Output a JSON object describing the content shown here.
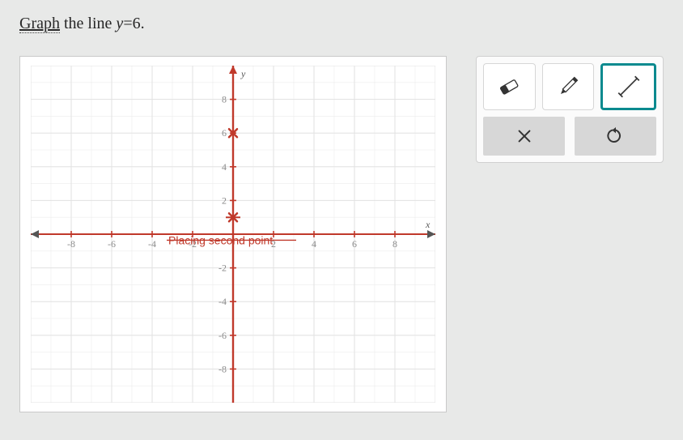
{
  "question": {
    "link_text": "Graph",
    "rest_text": " the line ",
    "equation_lhs": "y",
    "equation_op": "=",
    "equation_rhs": "6",
    "period": "."
  },
  "graph": {
    "type": "scatter",
    "xlim": [
      -10,
      10
    ],
    "ylim": [
      -10,
      10
    ],
    "tick_step": 2,
    "grid_minor_step": 1,
    "background_color": "#ffffff",
    "grid_color": "#e2e2e2",
    "grid_minor_color": "#ececec",
    "axis_color": "#555555",
    "axis_y_label": "y",
    "axis_x_label": "x",
    "tick_label_color": "#8a8a8a",
    "tick_label_fontsize": 12,
    "active_line_color": "#c0392b",
    "status_text": "Placing second point",
    "status_color": "#c0392b",
    "points": [
      {
        "x": 0,
        "y": 6,
        "marker": "x",
        "color": "#c0392b"
      },
      {
        "x": 0,
        "y": 1,
        "marker": "x",
        "color": "#c0392b"
      }
    ],
    "x_tick_labels": [
      "-8",
      "-6",
      "-4",
      "-2",
      "2",
      "4",
      "6",
      "8"
    ],
    "y_tick_labels_pos": [
      "2",
      "4",
      "6",
      "8"
    ],
    "y_tick_labels_neg": [
      "-2",
      "-4",
      "-6",
      "-8"
    ]
  },
  "toolbox": {
    "tools": [
      {
        "id": "eraser",
        "selected": false
      },
      {
        "id": "pencil",
        "selected": false
      },
      {
        "id": "line",
        "selected": true
      }
    ],
    "actions": [
      {
        "id": "clear",
        "label": "×"
      },
      {
        "id": "undo",
        "label": "↺"
      }
    ],
    "selected_border_color": "#0b8a8f"
  }
}
